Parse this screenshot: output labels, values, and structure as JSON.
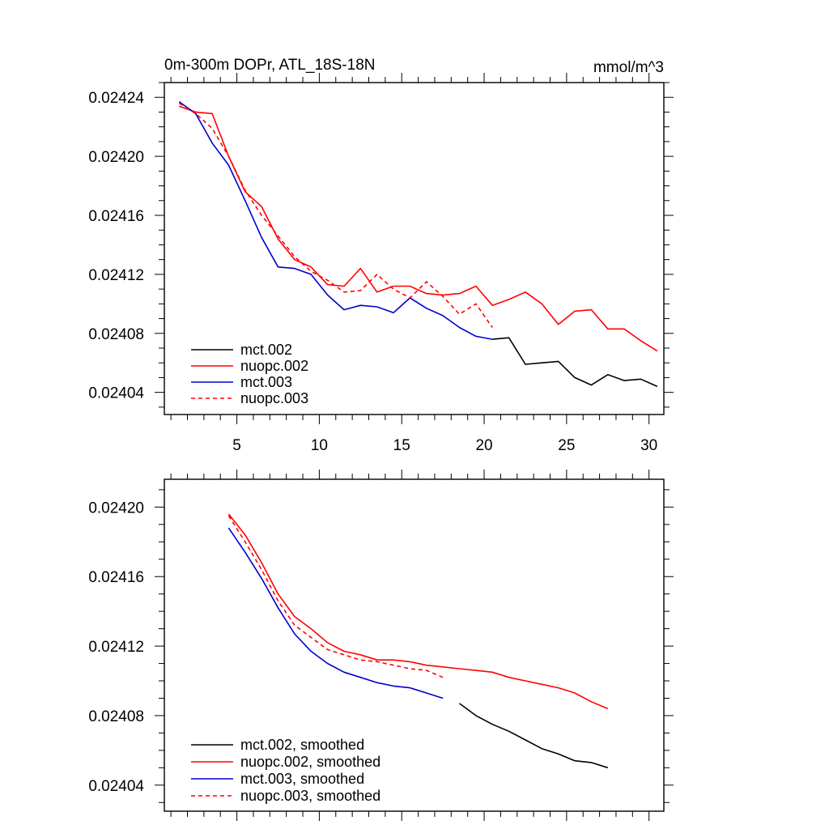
{
  "colors": {
    "black": "#000000",
    "red": "#ff0000",
    "blue": "#0000cc"
  },
  "chart_data": [
    {
      "type": "line",
      "title": "0m-300m DOPr, ATL_18S-18N",
      "units": "mmol/m^3",
      "xlim": [
        0.6,
        30.9
      ],
      "ylim": [
        0.024025,
        0.02425
      ],
      "xticks": [
        5,
        10,
        15,
        20,
        25,
        30
      ],
      "xtick_labels": [
        "5",
        "10",
        "15",
        "20",
        "25",
        "30"
      ],
      "yticks": [
        0.02404,
        0.02408,
        0.02412,
        0.02416,
        0.0242,
        0.02424
      ],
      "ytick_labels": [
        "0.02404",
        "0.02408",
        "0.02412",
        "0.02416",
        "0.02420",
        "0.02424"
      ],
      "legend_position": "bottom-left",
      "series": [
        {
          "name": "mct.002",
          "color": "#000000",
          "dash": "solid",
          "x": [
            20.5,
            21.5,
            22.5,
            23.5,
            24.5,
            25.5,
            26.5,
            27.5,
            28.5,
            29.5,
            30.5
          ],
          "y": [
            0.024076,
            0.024077,
            0.024059,
            0.02406,
            0.024061,
            0.02405,
            0.024045,
            0.024052,
            0.024048,
            0.024049,
            0.024044
          ]
        },
        {
          "name": "nuopc.002",
          "color": "#ff0000",
          "dash": "solid",
          "x": [
            1.5,
            2.5,
            3.5,
            4.5,
            5.5,
            6.5,
            7.5,
            8.5,
            9.5,
            10.5,
            11.5,
            12.5,
            13.5,
            14.5,
            15.5,
            16.5,
            17.5,
            18.5,
            19.5,
            20.5,
            21.5,
            22.5,
            23.5,
            24.5,
            25.5,
            26.5,
            27.5,
            28.5,
            29.5,
            30.5
          ],
          "y": [
            0.024234,
            0.02423,
            0.024229,
            0.0242,
            0.024176,
            0.024166,
            0.024144,
            0.02413,
            0.024125,
            0.024113,
            0.024112,
            0.024124,
            0.024108,
            0.024112,
            0.024112,
            0.024107,
            0.024106,
            0.024107,
            0.024112,
            0.024099,
            0.024103,
            0.024108,
            0.0241,
            0.024086,
            0.024095,
            0.024096,
            0.024083,
            0.024083,
            0.024075,
            0.024068
          ]
        },
        {
          "name": "mct.003",
          "color": "#0000cc",
          "dash": "solid",
          "x": [
            1.5,
            2.5,
            3.5,
            4.5,
            5.5,
            6.5,
            7.5,
            8.5,
            9.5,
            10.5,
            11.5,
            12.5,
            13.5,
            14.5,
            15.5,
            16.5,
            17.5,
            18.5,
            19.5,
            20.5
          ],
          "y": [
            0.024237,
            0.024229,
            0.024209,
            0.024194,
            0.02417,
            0.024145,
            0.024125,
            0.024124,
            0.02412,
            0.024106,
            0.024096,
            0.024099,
            0.024098,
            0.024094,
            0.024104,
            0.024097,
            0.024092,
            0.024084,
            0.024078,
            0.024076
          ]
        },
        {
          "name": "nuopc.003",
          "color": "#ff0000",
          "dash": "dashed",
          "x": [
            1.5,
            2.5,
            3.5,
            4.5,
            5.5,
            6.5,
            7.5,
            8.5,
            9.5,
            10.5,
            11.5,
            12.5,
            13.5,
            14.5,
            15.5,
            16.5,
            17.5,
            18.5,
            19.5,
            20.5
          ],
          "y": [
            0.024236,
            0.024229,
            0.024219,
            0.0242,
            0.024177,
            0.02416,
            0.024146,
            0.024132,
            0.024122,
            0.024116,
            0.024108,
            0.024109,
            0.02412,
            0.02411,
            0.024104,
            0.024115,
            0.024105,
            0.024093,
            0.0241,
            0.024084
          ]
        }
      ]
    },
    {
      "type": "line",
      "xlim": [
        0.6,
        30.9
      ],
      "ylim": [
        0.024025,
        0.024216
      ],
      "xticks": [
        5,
        10,
        15,
        20,
        25,
        30
      ],
      "yticks": [
        0.02404,
        0.02408,
        0.02412,
        0.02416,
        0.0242
      ],
      "ytick_labels": [
        "0.02404",
        "0.02408",
        "0.02412",
        "0.02416",
        "0.02420"
      ],
      "legend_position": "bottom-left",
      "series": [
        {
          "name": "mct.002, smoothed",
          "color": "#000000",
          "dash": "solid",
          "x": [
            18.5,
            19.5,
            20.5,
            21.5,
            22.5,
            23.5,
            24.5,
            25.5,
            26.5,
            27.5
          ],
          "y": [
            0.024087,
            0.02408,
            0.024075,
            0.024071,
            0.024066,
            0.024061,
            0.024058,
            0.024054,
            0.024053,
            0.02405
          ]
        },
        {
          "name": "nuopc.002, smoothed",
          "color": "#ff0000",
          "dash": "solid",
          "x": [
            4.5,
            5.5,
            6.5,
            7.5,
            8.5,
            9.5,
            10.5,
            11.5,
            12.5,
            13.5,
            14.5,
            15.5,
            16.5,
            17.5,
            18.5,
            19.5,
            20.5,
            21.5,
            22.5,
            23.5,
            24.5,
            25.5,
            26.5,
            27.5
          ],
          "y": [
            0.024196,
            0.024184,
            0.024168,
            0.02415,
            0.024137,
            0.02413,
            0.024122,
            0.024117,
            0.024115,
            0.024112,
            0.024112,
            0.024111,
            0.024109,
            0.024108,
            0.024107,
            0.024106,
            0.024105,
            0.024102,
            0.0241,
            0.024098,
            0.024096,
            0.024093,
            0.024088,
            0.024084
          ]
        },
        {
          "name": "mct.003, smoothed",
          "color": "#0000cc",
          "dash": "solid",
          "x": [
            4.5,
            5.5,
            6.5,
            7.5,
            8.5,
            9.5,
            10.5,
            11.5,
            12.5,
            13.5,
            14.5,
            15.5,
            16.5,
            17.5
          ],
          "y": [
            0.024188,
            0.024174,
            0.024159,
            0.024142,
            0.024127,
            0.024117,
            0.02411,
            0.024105,
            0.024102,
            0.024099,
            0.024097,
            0.024096,
            0.024093,
            0.02409
          ]
        },
        {
          "name": "nuopc.003, smoothed",
          "color": "#ff0000",
          "dash": "dashed",
          "x": [
            4.5,
            5.5,
            6.5,
            7.5,
            8.5,
            9.5,
            10.5,
            11.5,
            12.5,
            13.5,
            14.5,
            15.5,
            16.5,
            17.5
          ],
          "y": [
            0.024195,
            0.02418,
            0.024164,
            0.024146,
            0.024132,
            0.024125,
            0.024118,
            0.024115,
            0.024112,
            0.024111,
            0.024109,
            0.024107,
            0.024106,
            0.024102
          ]
        }
      ]
    }
  ]
}
